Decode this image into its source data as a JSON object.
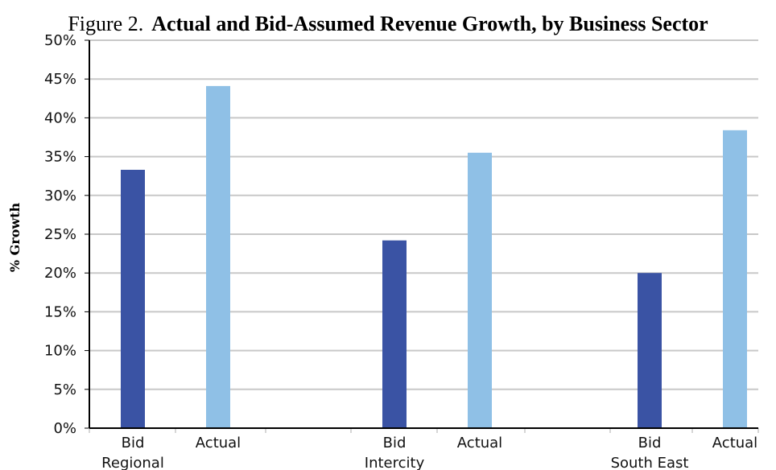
{
  "title": {
    "figure_number": "Figure 2.",
    "text": "Actual and Bid-Assumed Revenue Growth, by Business Sector"
  },
  "colors": {
    "bid": "#3a53a4",
    "actual": "#8fc0e6",
    "gridline": "#c8c8c8",
    "axis": "#000000"
  },
  "chart_data": {
    "type": "bar",
    "ylabel": "% Growth",
    "ylim": [
      0,
      50
    ],
    "yticks": [
      "0%",
      "5%",
      "10%",
      "15%",
      "20%",
      "25%",
      "30%",
      "35%",
      "40%",
      "45%",
      "50%"
    ],
    "grid": true,
    "groups": [
      {
        "name": "Regional",
        "bars": [
          {
            "label": "Bid",
            "series": "bid",
            "value": 33.3
          },
          {
            "label": "Actual",
            "series": "actual",
            "value": 44.1
          }
        ]
      },
      {
        "name": "Intercity",
        "bars": [
          {
            "label": "Bid",
            "series": "bid",
            "value": 24.2
          },
          {
            "label": "Actual",
            "series": "actual",
            "value": 35.5
          }
        ]
      },
      {
        "name": "South East",
        "bars": [
          {
            "label": "Bid",
            "series": "bid",
            "value": 20.0
          },
          {
            "label": "Actual",
            "series": "actual",
            "value": 38.4
          }
        ]
      }
    ]
  }
}
